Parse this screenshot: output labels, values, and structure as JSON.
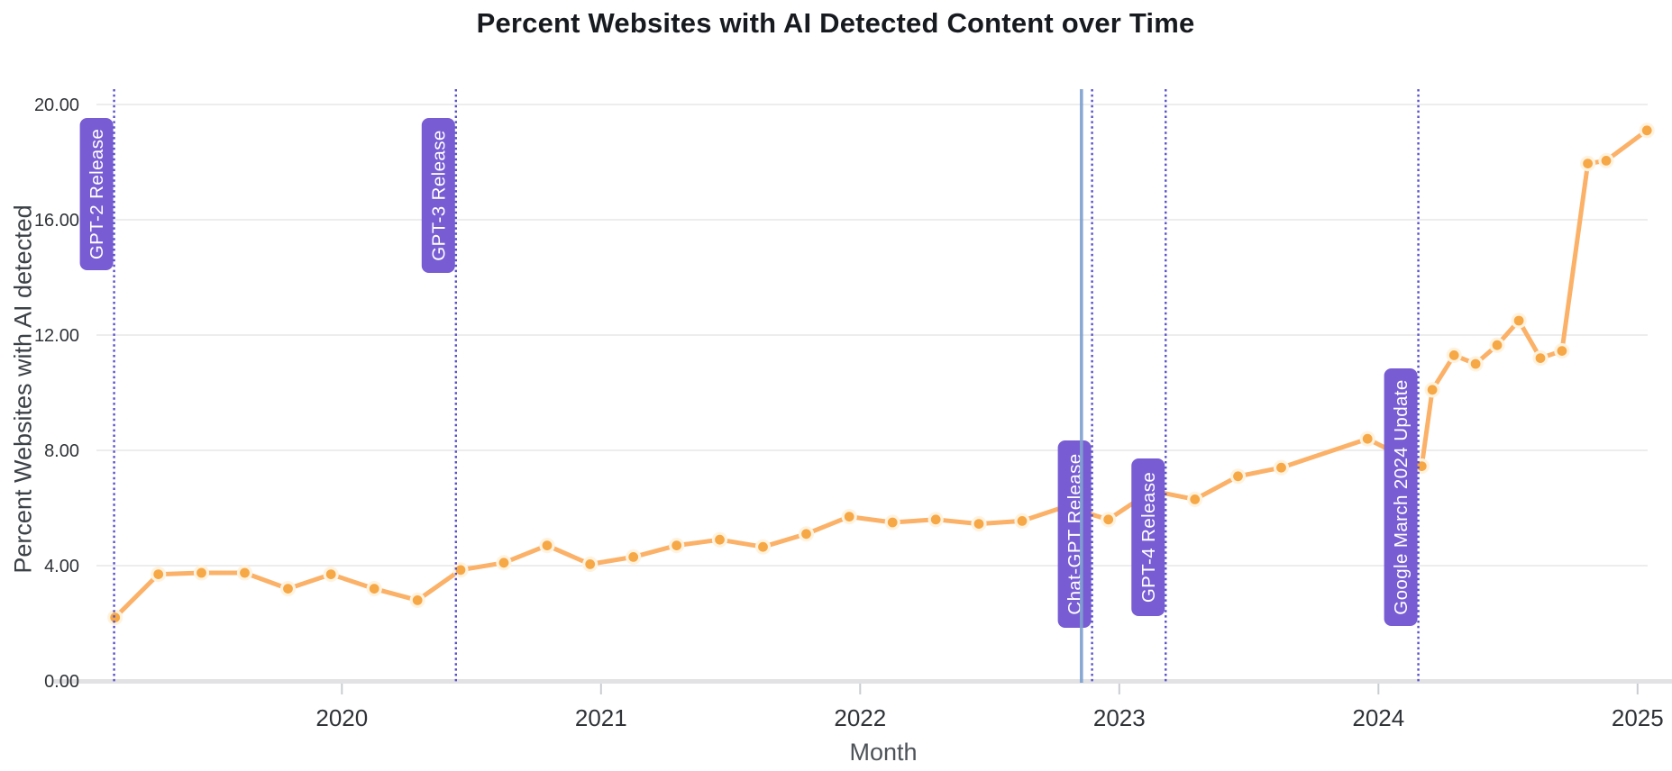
{
  "page": {
    "background": "#ffffff"
  },
  "chart_data": {
    "type": "line",
    "title": "Percent Websites with AI Detected Content over Time",
    "xlabel": "Month",
    "ylabel": "Percent Websites with AI detected",
    "ylim": [
      0,
      20
    ],
    "xlim": [
      2019.05,
      2025.09
    ],
    "yticks": [
      0,
      4,
      8,
      12,
      16,
      20
    ],
    "ytick_labels": [
      "0.00",
      "4.00",
      "8.00",
      "12.00",
      "16.00",
      "20.00"
    ],
    "xticks": [
      2020,
      2021,
      2022,
      2023,
      2024,
      2025
    ],
    "xtick_labels": [
      "2020",
      "2021",
      "2022",
      "2023",
      "2024",
      "2025"
    ],
    "grid": "horizontal-only",
    "legend": "none",
    "series": [
      {
        "name": "Percent websites with AI detected content",
        "points": [
          {
            "x": 2019.125,
            "y": 2.2
          },
          {
            "x": 2019.292,
            "y": 3.7
          },
          {
            "x": 2019.458,
            "y": 3.75
          },
          {
            "x": 2019.625,
            "y": 3.75
          },
          {
            "x": 2019.792,
            "y": 3.2
          },
          {
            "x": 2019.958,
            "y": 3.7
          },
          {
            "x": 2020.125,
            "y": 3.2
          },
          {
            "x": 2020.292,
            "y": 2.8
          },
          {
            "x": 2020.458,
            "y": 3.85
          },
          {
            "x": 2020.625,
            "y": 4.1
          },
          {
            "x": 2020.792,
            "y": 4.7
          },
          {
            "x": 2020.958,
            "y": 4.05
          },
          {
            "x": 2021.125,
            "y": 4.3
          },
          {
            "x": 2021.292,
            "y": 4.7
          },
          {
            "x": 2021.458,
            "y": 4.9
          },
          {
            "x": 2021.625,
            "y": 4.65
          },
          {
            "x": 2021.792,
            "y": 5.1
          },
          {
            "x": 2021.958,
            "y": 5.7
          },
          {
            "x": 2022.125,
            "y": 5.5
          },
          {
            "x": 2022.292,
            "y": 5.6
          },
          {
            "x": 2022.458,
            "y": 5.45
          },
          {
            "x": 2022.625,
            "y": 5.55
          },
          {
            "x": 2022.792,
            "y": 6.05
          },
          {
            "x": 2022.958,
            "y": 5.6
          },
          {
            "x": 2023.125,
            "y": 6.6
          },
          {
            "x": 2023.292,
            "y": 6.3
          },
          {
            "x": 2023.458,
            "y": 7.1
          },
          {
            "x": 2023.625,
            "y": 7.4
          },
          {
            "x": 2023.958,
            "y": 8.4
          },
          {
            "x": 2024.167,
            "y": 7.45
          },
          {
            "x": 2024.208,
            "y": 10.1
          },
          {
            "x": 2024.292,
            "y": 11.3
          },
          {
            "x": 2024.375,
            "y": 11.0
          },
          {
            "x": 2024.458,
            "y": 11.65
          },
          {
            "x": 2024.542,
            "y": 12.5
          },
          {
            "x": 2024.625,
            "y": 11.2
          },
          {
            "x": 2024.708,
            "y": 11.45
          },
          {
            "x": 2024.808,
            "y": 17.95
          },
          {
            "x": 2024.879,
            "y": 18.05
          },
          {
            "x": 2025.036,
            "y": 19.1
          }
        ]
      }
    ],
    "annotations": [
      {
        "label": "GPT-2 Release",
        "x": 2019.121,
        "line_style": "dotted"
      },
      {
        "label": "GPT-3 Release",
        "x": 2020.44,
        "line_style": "dotted"
      },
      {
        "label": "Chat-GPT Release",
        "x": 2022.895,
        "line_style": "dotted"
      },
      {
        "label": "GPT-4 Release",
        "x": 2023.179,
        "line_style": "dotted"
      },
      {
        "label": "Google March 2024 Update",
        "x": 2024.154,
        "line_style": "dotted"
      }
    ],
    "highlight_line": {
      "x": 2022.854,
      "style": "solid"
    },
    "colors": {
      "line": "#FBB167",
      "marker": "#F6A847",
      "marker_halo": "#FFF3DF",
      "badge_background": "#785CD3",
      "badge_text": "#FFFFFF",
      "annotation_line": "#5952C9",
      "highlight_line": "#7FA2D0",
      "grid": "#E7E7E8",
      "axis_baseline": "#E2E2E4",
      "tick": "#C9CDD1",
      "tick_label": "#2F3337",
      "title_text": "#171A1F"
    }
  }
}
